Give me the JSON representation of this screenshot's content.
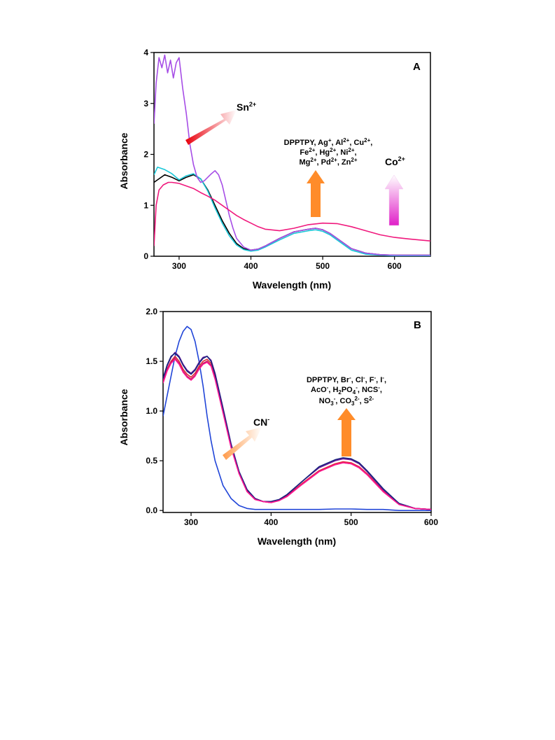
{
  "chart_data": [
    {
      "type": "line",
      "panel_label": "A",
      "xlabel": "Wavelength (nm)",
      "ylabel": "Absorbance",
      "xlim": [
        265,
        650
      ],
      "ylim": [
        0,
        4
      ],
      "xticks": [
        300,
        400,
        500,
        600
      ],
      "yticks": [
        0,
        1,
        2,
        3,
        4
      ],
      "grid": false,
      "annotations": {
        "sn": "Sn2+",
        "metals": [
          "DPPTPY, Ag+, Al2+, Cu2+,",
          "Fe2+, Hg2+, Ni2+,",
          "Mg2+, Pd2+, Zn2+"
        ],
        "co": "Co2+"
      },
      "series": [
        {
          "color": "#000000",
          "x": [
            265,
            270,
            280,
            290,
            300,
            310,
            320,
            330,
            340,
            350,
            360,
            370,
            380,
            390,
            400,
            410,
            420,
            440,
            460,
            480,
            490,
            500,
            510,
            520,
            540,
            560,
            580,
            600,
            620,
            650
          ],
          "y": [
            1.45,
            1.5,
            1.6,
            1.55,
            1.48,
            1.55,
            1.6,
            1.52,
            1.3,
            1.0,
            0.7,
            0.45,
            0.25,
            0.15,
            0.12,
            0.14,
            0.2,
            0.35,
            0.48,
            0.53,
            0.55,
            0.52,
            0.45,
            0.35,
            0.15,
            0.06,
            0.03,
            0.02,
            0.02,
            0.02
          ]
        },
        {
          "color": "#19c7d8",
          "x": [
            265,
            270,
            280,
            290,
            300,
            310,
            320,
            330,
            340,
            350,
            360,
            370,
            380,
            390,
            400,
            410,
            420,
            440,
            460,
            480,
            490,
            500,
            510,
            520,
            540,
            560,
            580,
            600,
            620,
            650
          ],
          "y": [
            1.6,
            1.75,
            1.7,
            1.62,
            1.5,
            1.58,
            1.62,
            1.52,
            1.28,
            0.95,
            0.65,
            0.4,
            0.22,
            0.13,
            0.1,
            0.12,
            0.18,
            0.32,
            0.45,
            0.5,
            0.52,
            0.49,
            0.42,
            0.32,
            0.12,
            0.04,
            0.02,
            0.01,
            0.01,
            0.01
          ]
        },
        {
          "color": "#a64de6",
          "x": [
            265,
            268,
            272,
            276,
            280,
            284,
            288,
            292,
            296,
            300,
            305,
            310,
            315,
            320,
            325,
            330,
            335,
            340,
            345,
            350,
            355,
            360,
            365,
            370,
            375,
            380,
            390,
            400,
            410,
            420,
            440,
            460,
            480,
            490,
            500,
            510,
            520,
            540,
            560,
            580,
            600,
            620,
            650
          ],
          "y": [
            2.6,
            3.4,
            3.9,
            3.7,
            3.95,
            3.6,
            3.85,
            3.5,
            3.8,
            3.9,
            3.3,
            2.8,
            2.2,
            1.8,
            1.55,
            1.45,
            1.48,
            1.55,
            1.62,
            1.68,
            1.6,
            1.4,
            1.1,
            0.8,
            0.55,
            0.35,
            0.18,
            0.12,
            0.14,
            0.2,
            0.35,
            0.48,
            0.53,
            0.55,
            0.52,
            0.45,
            0.35,
            0.15,
            0.06,
            0.03,
            0.02,
            0.02,
            0.02
          ]
        },
        {
          "color": "#f0197d",
          "x": [
            265,
            268,
            272,
            278,
            285,
            290,
            300,
            310,
            320,
            330,
            340,
            350,
            360,
            370,
            380,
            390,
            400,
            410,
            420,
            440,
            460,
            480,
            500,
            520,
            540,
            560,
            580,
            600,
            620,
            650
          ],
          "y": [
            0.2,
            1.0,
            1.3,
            1.4,
            1.45,
            1.45,
            1.43,
            1.38,
            1.33,
            1.25,
            1.18,
            1.1,
            1.0,
            0.9,
            0.8,
            0.72,
            0.65,
            0.58,
            0.53,
            0.5,
            0.55,
            0.62,
            0.65,
            0.64,
            0.58,
            0.5,
            0.42,
            0.37,
            0.34,
            0.3
          ]
        }
      ]
    },
    {
      "type": "line",
      "panel_label": "B",
      "xlabel": "Wavelength (nm)",
      "ylabel": "Absorbance",
      "xlim": [
        265,
        600
      ],
      "ylim": [
        -0.02,
        2.0
      ],
      "xticks": [
        300,
        400,
        500,
        600
      ],
      "yticks": [
        0.0,
        0.5,
        1.0,
        1.5,
        2.0
      ],
      "yticklabels": [
        "0.0",
        "0.5",
        "1.0",
        "1.5",
        "2.0"
      ],
      "grid": false,
      "annotations": {
        "cn": "CN-",
        "anions": [
          "DPPTPY, Br-, Cl-, F-, I-,",
          "AcO-, H2PO4-, NCS-,",
          "NO3-, CO32-, S2-"
        ]
      },
      "series": [
        {
          "color": "#2045d8",
          "x": [
            265,
            270,
            275,
            280,
            285,
            290,
            295,
            300,
            305,
            310,
            315,
            320,
            325,
            330,
            340,
            350,
            360,
            370,
            380,
            390,
            400,
            420,
            440,
            460,
            480,
            500,
            520,
            540,
            560,
            580,
            600
          ],
          "y": [
            0.95,
            1.15,
            1.35,
            1.55,
            1.7,
            1.8,
            1.85,
            1.82,
            1.7,
            1.5,
            1.25,
            0.95,
            0.7,
            0.5,
            0.25,
            0.12,
            0.05,
            0.02,
            0.01,
            0.01,
            0.01,
            0.01,
            0.01,
            0.01,
            0.015,
            0.015,
            0.01,
            0.01,
            0.0,
            0.0,
            0.0
          ]
        },
        {
          "color": "#e02a3a",
          "x": [
            265,
            270,
            275,
            280,
            285,
            290,
            295,
            300,
            305,
            310,
            315,
            320,
            325,
            330,
            340,
            350,
            360,
            370,
            380,
            390,
            400,
            410,
            420,
            440,
            460,
            480,
            490,
            500,
            510,
            520,
            540,
            560,
            580,
            600
          ],
          "y": [
            1.3,
            1.42,
            1.5,
            1.55,
            1.5,
            1.42,
            1.37,
            1.34,
            1.38,
            1.45,
            1.5,
            1.52,
            1.48,
            1.35,
            1.0,
            0.65,
            0.38,
            0.2,
            0.12,
            0.09,
            0.08,
            0.1,
            0.15,
            0.28,
            0.4,
            0.47,
            0.49,
            0.48,
            0.44,
            0.37,
            0.2,
            0.06,
            0.02,
            0.01
          ]
        },
        {
          "color": "#6a1b9a",
          "x": [
            265,
            270,
            275,
            280,
            285,
            290,
            295,
            300,
            305,
            310,
            315,
            320,
            325,
            330,
            340,
            350,
            360,
            370,
            380,
            390,
            400,
            410,
            420,
            440,
            460,
            480,
            490,
            500,
            510,
            520,
            540,
            560,
            580,
            600
          ],
          "y": [
            1.32,
            1.45,
            1.54,
            1.59,
            1.55,
            1.47,
            1.41,
            1.38,
            1.42,
            1.49,
            1.54,
            1.55,
            1.51,
            1.38,
            1.03,
            0.67,
            0.39,
            0.21,
            0.12,
            0.09,
            0.09,
            0.11,
            0.16,
            0.3,
            0.43,
            0.5,
            0.52,
            0.51,
            0.47,
            0.39,
            0.21,
            0.07,
            0.02,
            0.01
          ]
        },
        {
          "color": "#c2185b",
          "x": [
            265,
            270,
            275,
            280,
            285,
            290,
            295,
            300,
            305,
            310,
            315,
            320,
            325,
            330,
            340,
            350,
            360,
            370,
            380,
            390,
            400,
            410,
            420,
            440,
            460,
            480,
            490,
            500,
            510,
            520,
            540,
            560,
            580,
            600
          ],
          "y": [
            1.29,
            1.41,
            1.49,
            1.53,
            1.48,
            1.4,
            1.35,
            1.32,
            1.36,
            1.43,
            1.48,
            1.5,
            1.46,
            1.33,
            0.99,
            0.64,
            0.37,
            0.19,
            0.11,
            0.09,
            0.08,
            0.1,
            0.15,
            0.27,
            0.39,
            0.46,
            0.48,
            0.47,
            0.43,
            0.36,
            0.19,
            0.06,
            0.02,
            0.01
          ]
        },
        {
          "color": "#1a237e",
          "x": [
            265,
            270,
            275,
            280,
            285,
            290,
            295,
            300,
            305,
            310,
            315,
            320,
            325,
            330,
            340,
            350,
            360,
            370,
            380,
            390,
            400,
            410,
            420,
            440,
            460,
            480,
            490,
            500,
            510,
            520,
            540,
            560,
            580,
            600
          ],
          "y": [
            1.33,
            1.46,
            1.55,
            1.58,
            1.54,
            1.46,
            1.4,
            1.37,
            1.41,
            1.48,
            1.53,
            1.55,
            1.5,
            1.37,
            1.02,
            0.66,
            0.39,
            0.21,
            0.12,
            0.09,
            0.09,
            0.11,
            0.16,
            0.3,
            0.44,
            0.51,
            0.53,
            0.52,
            0.48,
            0.4,
            0.22,
            0.07,
            0.02,
            0.01
          ]
        },
        {
          "color": "#ff1493",
          "x": [
            265,
            270,
            275,
            280,
            285,
            290,
            295,
            300,
            305,
            310,
            315,
            320,
            325,
            330,
            340,
            350,
            360,
            370,
            380,
            390,
            400,
            410,
            420,
            440,
            460,
            480,
            490,
            500,
            510,
            520,
            540,
            560,
            580,
            600
          ],
          "y": [
            1.28,
            1.4,
            1.48,
            1.52,
            1.47,
            1.39,
            1.34,
            1.31,
            1.35,
            1.42,
            1.47,
            1.49,
            1.45,
            1.32,
            0.98,
            0.63,
            0.37,
            0.19,
            0.11,
            0.09,
            0.08,
            0.1,
            0.14,
            0.27,
            0.39,
            0.46,
            0.48,
            0.47,
            0.43,
            0.36,
            0.19,
            0.06,
            0.02,
            0.01
          ]
        }
      ]
    }
  ]
}
